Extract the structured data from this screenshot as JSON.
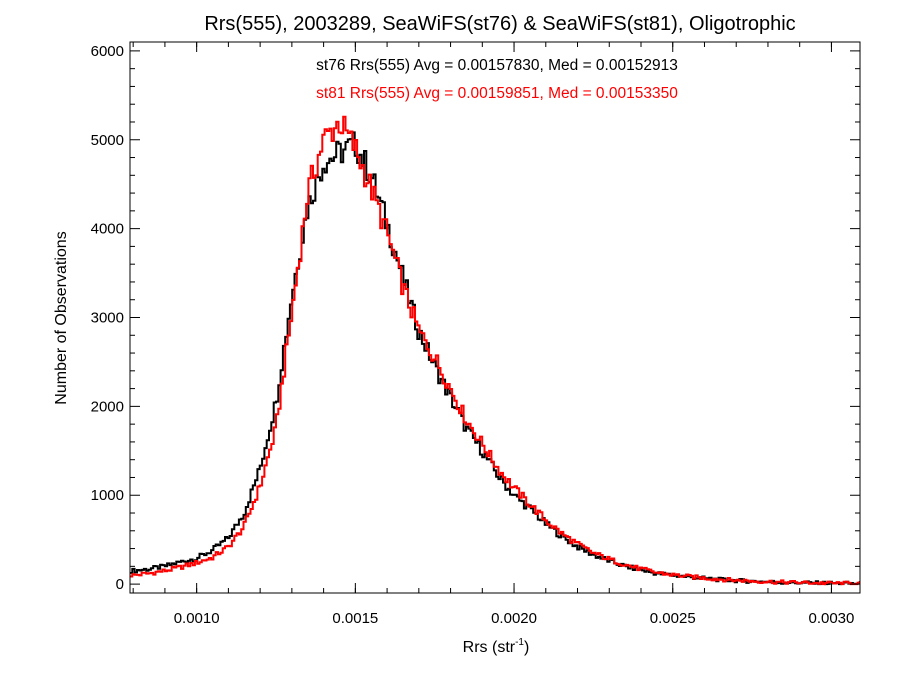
{
  "chart_data": {
    "type": "histogram",
    "title": "Rrs(555), 2003289, SeaWiFS(st76) & SeaWiFS(st81), Oligotrophic",
    "xlabel_main": "Rrs (str",
    "xlabel_sup": "-1",
    "xlabel_tail": ")",
    "ylabel": "Number of Observations",
    "xlim": [
      0.00079,
      0.00309
    ],
    "ylim": [
      -100,
      6100
    ],
    "xticks": [
      {
        "value": 0.001,
        "label": "0.0010"
      },
      {
        "value": 0.0015,
        "label": "0.0015"
      },
      {
        "value": 0.002,
        "label": "0.0020"
      },
      {
        "value": 0.0025,
        "label": "0.0025"
      },
      {
        "value": 0.003,
        "label": "0.0030"
      }
    ],
    "yticks": [
      {
        "value": 0,
        "label": "0"
      },
      {
        "value": 1000,
        "label": "1000"
      },
      {
        "value": 2000,
        "label": "2000"
      },
      {
        "value": 3000,
        "label": "3000"
      },
      {
        "value": 4000,
        "label": "4000"
      },
      {
        "value": 5000,
        "label": "5000"
      },
      {
        "value": 6000,
        "label": "6000"
      }
    ],
    "grid": false,
    "annotations": [
      {
        "text": "st76 Rrs(555) Avg = 0.00157830, Med = 0.00152913",
        "color": "#000000"
      },
      {
        "text": "st81 Rrs(555) Avg = 0.00159851, Med = 0.00153350",
        "color": "#ff0000"
      }
    ],
    "series": [
      {
        "name": "st76",
        "color": "#000000",
        "points": [
          [
            0.0008,
            150
          ],
          [
            0.00085,
            170
          ],
          [
            0.0009,
            200
          ],
          [
            0.00095,
            250
          ],
          [
            0.001,
            290
          ],
          [
            0.00105,
            380
          ],
          [
            0.0011,
            520
          ],
          [
            0.00115,
            800
          ],
          [
            0.0012,
            1300
          ],
          [
            0.00125,
            2050
          ],
          [
            0.0013,
            3250
          ],
          [
            0.00135,
            4250
          ],
          [
            0.0014,
            4750
          ],
          [
            0.00145,
            4850
          ],
          [
            0.0015,
            4950
          ],
          [
            0.00155,
            4600
          ],
          [
            0.0016,
            4050
          ],
          [
            0.00165,
            3450
          ],
          [
            0.0017,
            2850
          ],
          [
            0.00175,
            2450
          ],
          [
            0.0018,
            2100
          ],
          [
            0.00185,
            1750
          ],
          [
            0.0019,
            1500
          ],
          [
            0.00195,
            1220
          ],
          [
            0.002,
            1000
          ],
          [
            0.00205,
            850
          ],
          [
            0.0021,
            680
          ],
          [
            0.00215,
            540
          ],
          [
            0.0022,
            420
          ],
          [
            0.00225,
            330
          ],
          [
            0.0023,
            260
          ],
          [
            0.00235,
            200
          ],
          [
            0.0024,
            160
          ],
          [
            0.00245,
            120
          ],
          [
            0.0025,
            100
          ],
          [
            0.00255,
            80
          ],
          [
            0.0026,
            65
          ],
          [
            0.00265,
            50
          ],
          [
            0.0027,
            40
          ],
          [
            0.00275,
            32
          ],
          [
            0.0028,
            25
          ],
          [
            0.00285,
            20
          ],
          [
            0.0029,
            16
          ],
          [
            0.00295,
            12
          ],
          [
            0.003,
            10
          ],
          [
            0.00305,
            8
          ],
          [
            0.00309,
            6
          ]
        ]
      },
      {
        "name": "st81",
        "color": "#ff0000",
        "points": [
          [
            0.0008,
            100
          ],
          [
            0.00085,
            120
          ],
          [
            0.0009,
            150
          ],
          [
            0.00095,
            190
          ],
          [
            0.001,
            240
          ],
          [
            0.00105,
            300
          ],
          [
            0.0011,
            420
          ],
          [
            0.00115,
            650
          ],
          [
            0.0012,
            1100
          ],
          [
            0.00125,
            1750
          ],
          [
            0.0013,
            3050
          ],
          [
            0.00135,
            4400
          ],
          [
            0.0014,
            5000
          ],
          [
            0.00145,
            5200
          ],
          [
            0.0015,
            4900
          ],
          [
            0.00155,
            4450
          ],
          [
            0.0016,
            3950
          ],
          [
            0.00165,
            3350
          ],
          [
            0.0017,
            2850
          ],
          [
            0.00175,
            2550
          ],
          [
            0.0018,
            2200
          ],
          [
            0.00185,
            1850
          ],
          [
            0.0019,
            1580
          ],
          [
            0.00195,
            1300
          ],
          [
            0.002,
            1080
          ],
          [
            0.00205,
            900
          ],
          [
            0.0021,
            720
          ],
          [
            0.00215,
            570
          ],
          [
            0.0022,
            450
          ],
          [
            0.00225,
            350
          ],
          [
            0.0023,
            280
          ],
          [
            0.00235,
            220
          ],
          [
            0.0024,
            170
          ],
          [
            0.00245,
            130
          ],
          [
            0.0025,
            105
          ],
          [
            0.00255,
            85
          ],
          [
            0.0026,
            68
          ],
          [
            0.00265,
            54
          ],
          [
            0.0027,
            43
          ],
          [
            0.00275,
            34
          ],
          [
            0.0028,
            27
          ],
          [
            0.00285,
            21
          ],
          [
            0.0029,
            17
          ],
          [
            0.00295,
            13
          ],
          [
            0.003,
            10
          ],
          [
            0.00305,
            8
          ],
          [
            0.00309,
            6
          ]
        ]
      }
    ]
  }
}
